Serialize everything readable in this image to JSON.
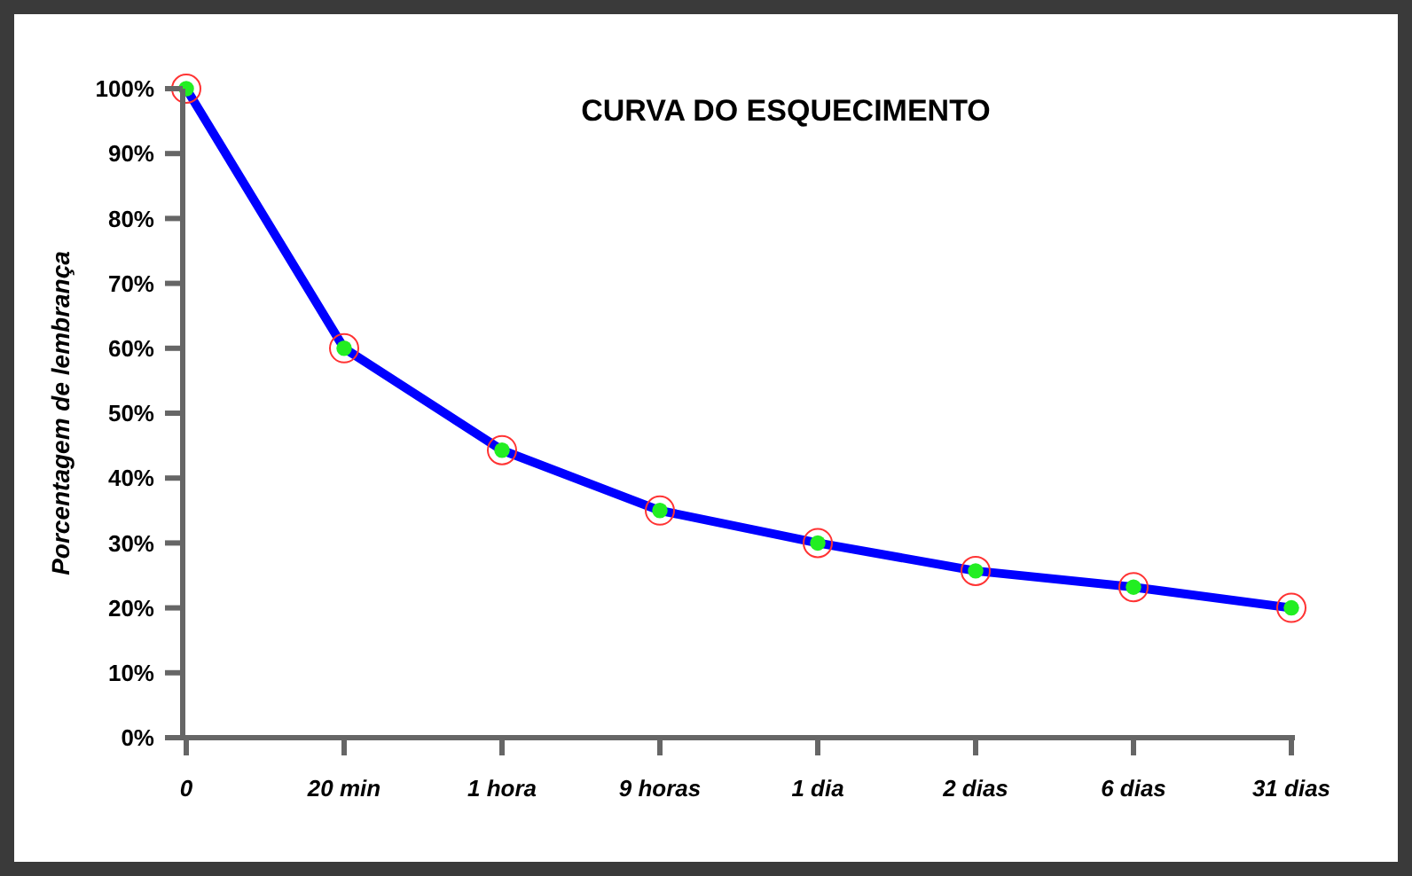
{
  "chart_data": {
    "type": "line",
    "title": "CURVA DO ESQUECIMENTO",
    "ylabel": "Porcentagem de lembrança",
    "categories": [
      "0",
      "20 min",
      "1 hora",
      "9 horas",
      "1 dia",
      "2 dias",
      "6 dias",
      "31 dias"
    ],
    "series": [
      {
        "color": "#0000ff",
        "values": [
          100,
          60,
          44.3,
          35,
          30,
          25.7,
          23.2,
          20
        ]
      }
    ],
    "ylim": [
      0,
      100
    ],
    "yticks": [
      {
        "value": 0,
        "label": "0%"
      },
      {
        "value": 10,
        "label": "10%"
      },
      {
        "value": 20,
        "label": "20%"
      },
      {
        "value": 30,
        "label": "30%"
      },
      {
        "value": 40,
        "label": "40%"
      },
      {
        "value": 50,
        "label": "50%"
      },
      {
        "value": 60,
        "label": "60%"
      },
      {
        "value": 70,
        "label": "70%"
      },
      {
        "value": 80,
        "label": "80%"
      },
      {
        "value": 90,
        "label": "90%"
      },
      {
        "value": 100,
        "label": "100%"
      }
    ],
    "grid": false,
    "marker": "circle",
    "line_style": "solid"
  }
}
